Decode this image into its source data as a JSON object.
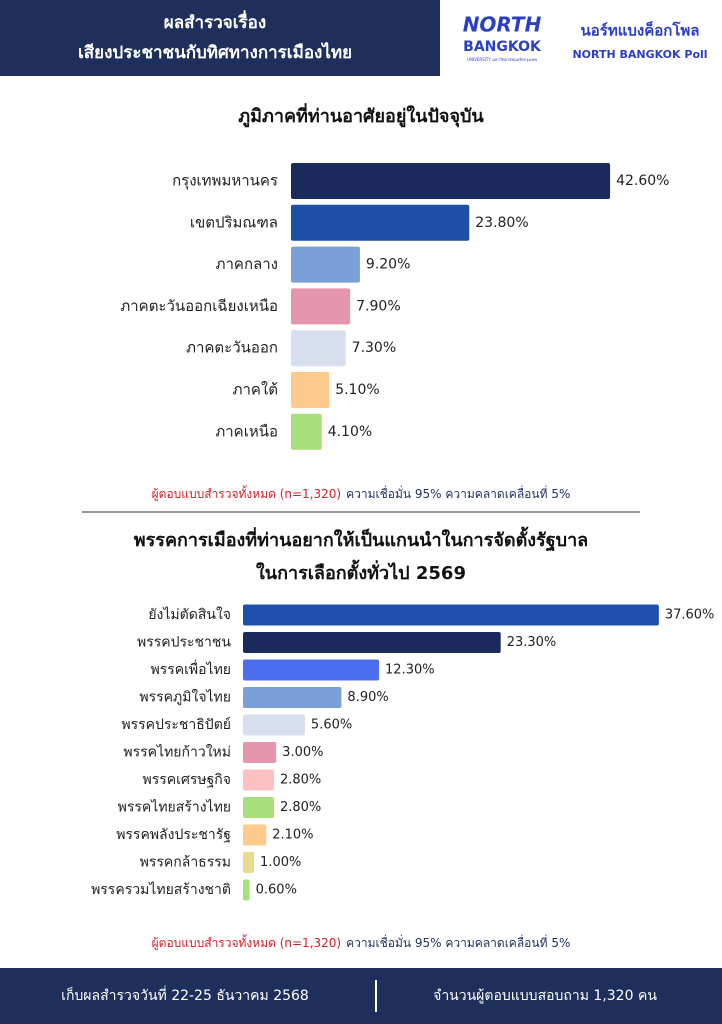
{
  "header": {
    "title": [
      "ผลสำรวจเรื่อง",
      "เสียงประชาชนกับทิศทางการเมืองไทย"
    ],
    "logo": [
      "NORTH",
      "BANGKOK",
      "UNIVERSITY มหาวิทยาลัยนอร์ทกรุงเทพ"
    ],
    "brand": [
      "นอร์ทแบงค็อกโพล",
      "NORTH BANGKOK Poll"
    ]
  },
  "chart_data": [
    {
      "type": "bar",
      "orientation": "horizontal",
      "title": [
        "ภูมิภาคที่ท่านอาศัยอยู่ในปัจจุบัน"
      ],
      "categories": [
        "กรุงเทพมหานคร",
        "เขตปริมณฑล",
        "ภาคกลาง",
        "ภาคตะวันออกเฉียงเหนือ",
        "ภาคตะวันออก",
        "ภาคใต้",
        "ภาคเหนือ"
      ],
      "values": [
        42.6,
        23.8,
        9.2,
        7.9,
        7.3,
        5.1,
        4.1
      ],
      "value_labels": [
        "42.60%",
        "23.80%",
        "9.20%",
        "7.90%",
        "7.30%",
        "5.10%",
        "4.10%"
      ],
      "colors": [
        "#1b2a5c",
        "#1d4fa8",
        "#7c9fd8",
        "#e497ac",
        "#d7deee",
        "#fdca8c",
        "#a9e07c"
      ],
      "note": [
        "ผู้ตอบแบบสำรวจทั้งหมด (n=1,320)",
        "ความเชื่อมั่น 95% ความคลาดเคลื่อนที่ 5%"
      ]
    },
    {
      "type": "bar",
      "orientation": "horizontal",
      "title": [
        "พรรคการเมืองที่ท่านอยากให้เป็นแกนนำในการจัดตั้งรัฐบาล",
        "ในการเลือกตั้งทั่วไป 2569"
      ],
      "categories": [
        "ยังไม่ตัดสินใจ",
        "พรรคประชาชน",
        "พรรคเพื่อไทย",
        "พรรคภูมิใจไทย",
        "พรรคประชาธิปัตย์",
        "พรรคไทยก้าวใหม่",
        "พรรคเศรษฐกิจ",
        "พรรคไทยสร้างไทย",
        "พรรคพลังประชารัฐ",
        "พรรคกล้าธรรม",
        "พรรครวมไทยสร้างชาติ"
      ],
      "values": [
        37.6,
        23.3,
        12.3,
        8.9,
        5.6,
        3.0,
        2.8,
        2.8,
        2.1,
        1.0,
        0.6
      ],
      "value_labels": [
        "37.60%",
        "23.30%",
        "12.30%",
        "8.90%",
        "5.60%",
        "3.00%",
        "2.80%",
        "2.80%",
        "2.10%",
        "1.00%",
        "0.60%"
      ],
      "colors": [
        "#1f4fae",
        "#1b2a5c",
        "#4b6df0",
        "#7c9fd8",
        "#d7deee",
        "#e497ac",
        "#fcc1c1",
        "#a9e07c",
        "#fdca8c",
        "#e6dc8c",
        "#a9e07c"
      ],
      "note": [
        "ผู้ตอบแบบสำรวจทั้งหมด (n=1,320)",
        "ความเชื่อมั่น 95% ความคลาดเคลื่อนที่ 5%"
      ]
    }
  ],
  "footer": [
    "เก็บผลสำรวจวันที่ 22-25 ธันวาคม 2568",
    "จำนวนผู้ตอบแบบสอบถาม 1,320 คน"
  ]
}
